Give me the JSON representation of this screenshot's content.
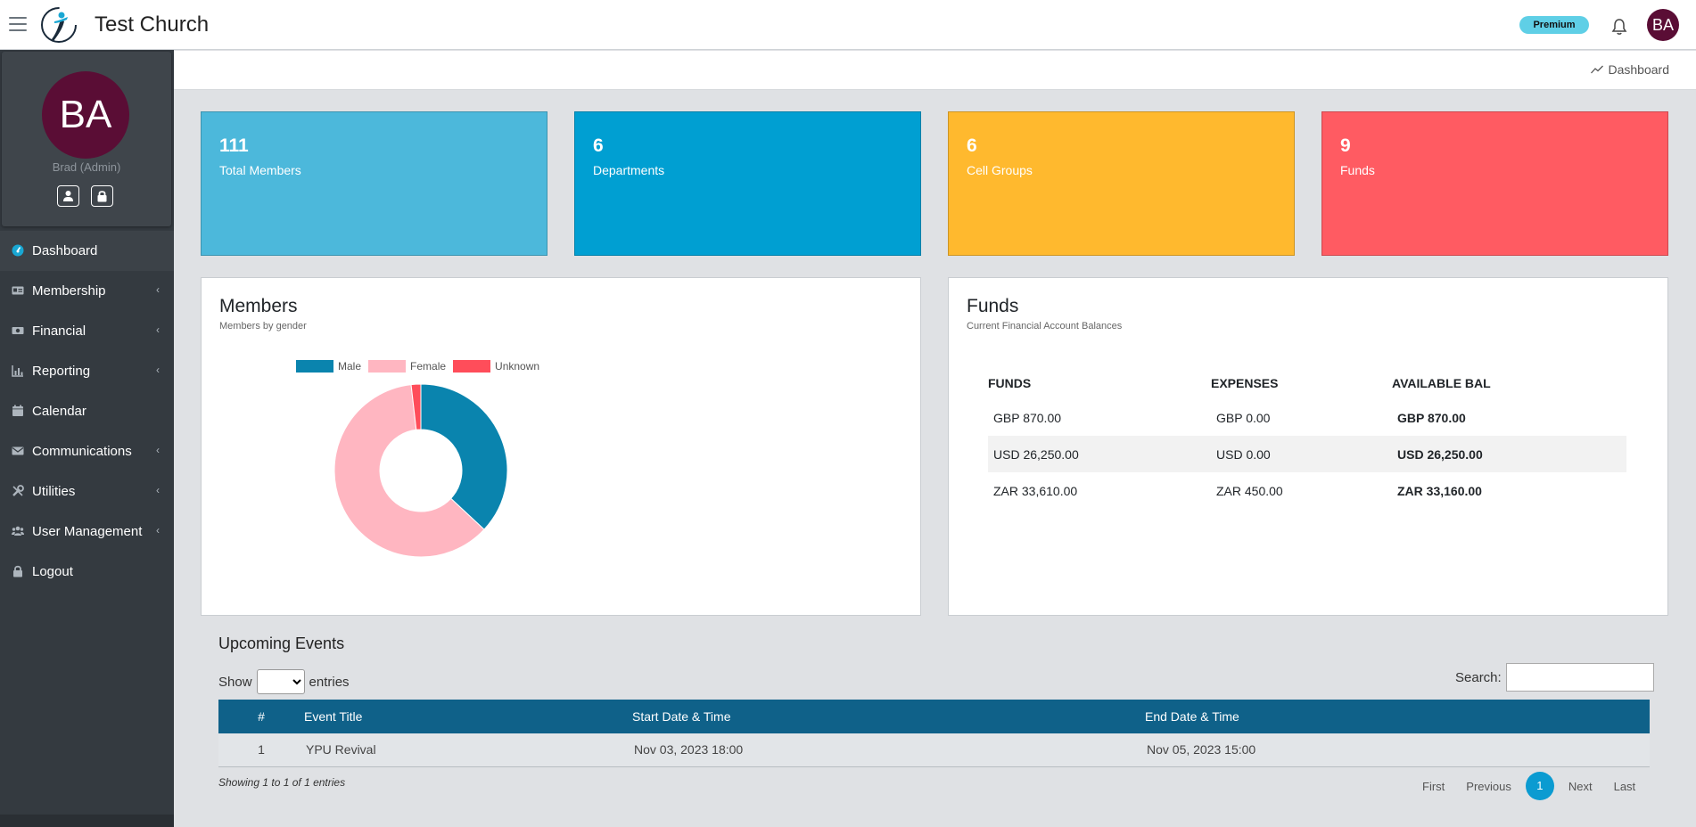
{
  "app": {
    "title": "Test Church",
    "badge": "Premium",
    "avatar_initials": "BA"
  },
  "sidebar": {
    "avatar_initials": "BA",
    "user_name": "Brad (Admin)",
    "items": [
      {
        "label": "Dashboard",
        "icon": "dashboard-icon",
        "active": true,
        "has_submenu": false
      },
      {
        "label": "Membership",
        "icon": "id-card-icon",
        "active": false,
        "has_submenu": true
      },
      {
        "label": "Financial",
        "icon": "money-icon",
        "active": false,
        "has_submenu": true
      },
      {
        "label": "Reporting",
        "icon": "chart-icon",
        "active": false,
        "has_submenu": true
      },
      {
        "label": "Calendar",
        "icon": "calendar-icon",
        "active": false,
        "has_submenu": false
      },
      {
        "label": "Communications",
        "icon": "envelope-icon",
        "active": false,
        "has_submenu": true
      },
      {
        "label": "Utilities",
        "icon": "tools-icon",
        "active": false,
        "has_submenu": true
      },
      {
        "label": "User Management",
        "icon": "users-icon",
        "active": false,
        "has_submenu": true
      },
      {
        "label": "Logout",
        "icon": "lock-icon",
        "active": false,
        "has_submenu": false
      }
    ],
    "chevron": "‹"
  },
  "breadcrumb": {
    "label": "Dashboard"
  },
  "stats": [
    {
      "value": "111",
      "label": "Total Members",
      "color": "#4cb8db"
    },
    {
      "value": "6",
      "label": "Departments",
      "color": "#009fd2"
    },
    {
      "value": "6",
      "label": "Cell Groups",
      "color": "#ffb92e"
    },
    {
      "value": "9",
      "label": "Funds",
      "color": "#ff5b62"
    }
  ],
  "members_card": {
    "title": "Members",
    "subtitle": "Members by gender",
    "chart_data": {
      "type": "pie",
      "variant": "doughnut",
      "categories": [
        "Male",
        "Female",
        "Unknown"
      ],
      "values": [
        41,
        68,
        2
      ],
      "colors": [
        "#0a84ae",
        "#ffb6c1",
        "#ff4d5a"
      ],
      "legend": "top"
    }
  },
  "funds_card": {
    "title": "Funds",
    "subtitle": "Current Financial Account Balances",
    "columns": [
      "FUNDS",
      "EXPENSES",
      "AVAILABLE BAL"
    ],
    "rows": [
      [
        "GBP 870.00",
        "GBP 0.00",
        "GBP 870.00"
      ],
      [
        "USD 26,250.00",
        "USD 0.00",
        "USD 26,250.00"
      ],
      [
        "ZAR 33,610.00",
        "ZAR 450.00",
        "ZAR 33,160.00"
      ]
    ]
  },
  "events": {
    "title": "Upcoming Events",
    "show_label": "Show",
    "entries_label": "entries",
    "search_label": "Search:",
    "search_value": "",
    "columns": [
      "#",
      "Event Title",
      "Start Date & Time",
      "End Date & Time"
    ],
    "rows": [
      [
        "1",
        "YPU Revival",
        "Nov 03, 2023 18:00",
        "Nov 05, 2023 15:00"
      ]
    ],
    "info": "Showing 1 to 1 of 1 entries",
    "pager": {
      "first": "First",
      "previous": "Previous",
      "current": "1",
      "next": "Next",
      "last": "Last"
    }
  }
}
